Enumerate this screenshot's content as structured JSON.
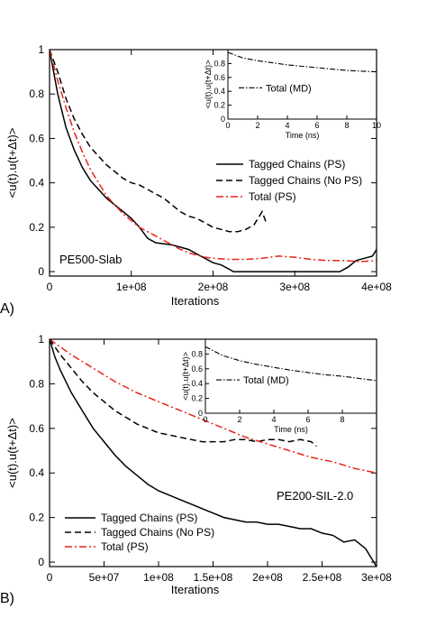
{
  "chart_data": [
    {
      "type": "line",
      "panel_label": "A)",
      "annotation": "PE500-Slab",
      "xlabel": "Iterations",
      "ylabel": "<u(t).u(t+Δt)>",
      "xlim": [
        0,
        400000000
      ],
      "ylim": [
        -0.02,
        1.0
      ],
      "x_ticks": [
        0,
        100000000,
        200000000,
        300000000,
        400000000
      ],
      "x_tick_labels": [
        "0",
        "1e+08",
        "2e+08",
        "3e+08",
        "4e+08"
      ],
      "y_ticks": [
        0,
        0.2,
        0.4,
        0.6,
        0.8,
        1
      ],
      "y_tick_labels": [
        "0",
        "0.2",
        "0.4",
        "0.6",
        "0.8",
        "1"
      ],
      "legend_position": "right",
      "series": [
        {
          "name": "Tagged Chains (PS)",
          "color": "#000000",
          "dash": "solid",
          "x": [
            0,
            5000000,
            10000000,
            20000000,
            30000000,
            40000000,
            50000000,
            60000000,
            70000000,
            80000000,
            90000000,
            100000000,
            110000000,
            120000000,
            130000000,
            140000000,
            150000000,
            160000000,
            170000000,
            180000000,
            190000000,
            200000000,
            210000000,
            220000000,
            225000000,
            355000000,
            365000000,
            375000000,
            385000000,
            395000000,
            400000000
          ],
          "y": [
            1.0,
            0.9,
            0.8,
            0.65,
            0.55,
            0.47,
            0.41,
            0.37,
            0.33,
            0.3,
            0.27,
            0.24,
            0.2,
            0.15,
            0.13,
            0.125,
            0.12,
            0.11,
            0.1,
            0.08,
            0.06,
            0.04,
            0.03,
            0.01,
            0.0,
            0.0,
            0.02,
            0.05,
            0.06,
            0.07,
            0.1
          ]
        },
        {
          "name": "Tagged Chains (No PS)",
          "color": "#000000",
          "dash": "dashed",
          "x": [
            0,
            10000000,
            20000000,
            30000000,
            40000000,
            50000000,
            60000000,
            70000000,
            80000000,
            90000000,
            100000000,
            110000000,
            120000000,
            130000000,
            140000000,
            150000000,
            160000000,
            170000000,
            180000000,
            190000000,
            200000000,
            210000000,
            220000000,
            230000000,
            240000000,
            250000000,
            255000000,
            260000000,
            265000000
          ],
          "y": [
            1.0,
            0.9,
            0.78,
            0.69,
            0.62,
            0.56,
            0.52,
            0.48,
            0.45,
            0.42,
            0.4,
            0.39,
            0.37,
            0.35,
            0.33,
            0.3,
            0.27,
            0.25,
            0.24,
            0.22,
            0.2,
            0.19,
            0.18,
            0.18,
            0.19,
            0.21,
            0.24,
            0.27,
            0.22
          ]
        },
        {
          "name": "Total (PS)",
          "color": "#e8241a",
          "dash": "dashdot",
          "x": [
            0,
            10000000,
            20000000,
            30000000,
            40000000,
            50000000,
            60000000,
            70000000,
            80000000,
            90000000,
            100000000,
            110000000,
            120000000,
            130000000,
            140000000,
            150000000,
            160000000,
            170000000,
            180000000,
            190000000,
            200000000,
            220000000,
            240000000,
            260000000,
            280000000,
            300000000,
            320000000,
            340000000,
            360000000,
            380000000,
            400000000
          ],
          "y": [
            1.0,
            0.86,
            0.74,
            0.63,
            0.54,
            0.46,
            0.4,
            0.34,
            0.3,
            0.26,
            0.23,
            0.2,
            0.18,
            0.16,
            0.14,
            0.12,
            0.1,
            0.085,
            0.075,
            0.065,
            0.06,
            0.055,
            0.055,
            0.06,
            0.07,
            0.065,
            0.055,
            0.05,
            0.05,
            0.045,
            0.05
          ]
        }
      ],
      "inset": {
        "type": "line",
        "xlabel": "Time (ns)",
        "ylabel": "<u(t).u(t+Δt)>",
        "xlim": [
          0,
          10
        ],
        "ylim": [
          0,
          1.0
        ],
        "x_ticks": [
          0,
          2,
          4,
          6,
          8,
          10
        ],
        "x_tick_labels": [
          "0",
          "2",
          "4",
          "6",
          "8",
          "10"
        ],
        "y_ticks": [
          0,
          0.2,
          0.4,
          0.6,
          0.8
        ],
        "y_tick_labels": [
          "0",
          "0.2",
          "0.4",
          "0.6",
          "0.8"
        ],
        "series": [
          {
            "name": "Total (MD)",
            "color": "#000000",
            "dash": "dashdot",
            "x": [
              0,
              1,
              2,
              3,
              4,
              5,
              6,
              7,
              8,
              9,
              10
            ],
            "y": [
              0.96,
              0.88,
              0.84,
              0.81,
              0.78,
              0.76,
              0.74,
              0.72,
              0.7,
              0.69,
              0.68
            ]
          }
        ]
      }
    },
    {
      "type": "line",
      "panel_label": "B)",
      "annotation": "PE200-SIL-2.0",
      "xlabel": "Iterations",
      "ylabel": "<u(t).u(t+Δt)>",
      "xlim": [
        0,
        300000000
      ],
      "ylim": [
        -0.02,
        1.0
      ],
      "x_ticks": [
        0,
        50000000,
        100000000,
        150000000,
        200000000,
        250000000,
        300000000
      ],
      "x_tick_labels": [
        "0",
        "5e+07",
        "1e+08",
        "1.5e+08",
        "2e+08",
        "2.5e+08",
        "3e+08"
      ],
      "y_ticks": [
        0,
        0.2,
        0.4,
        0.6,
        0.8,
        1
      ],
      "y_tick_labels": [
        "0",
        "0.2",
        "0.4",
        "0.6",
        "0.8",
        "1"
      ],
      "legend_position": "bottom-left",
      "series": [
        {
          "name": "Tagged Chains (PS)",
          "color": "#000000",
          "dash": "solid",
          "x": [
            0,
            5000000,
            10000000,
            20000000,
            30000000,
            40000000,
            50000000,
            60000000,
            70000000,
            80000000,
            90000000,
            100000000,
            110000000,
            120000000,
            130000000,
            140000000,
            150000000,
            160000000,
            170000000,
            180000000,
            190000000,
            200000000,
            210000000,
            220000000,
            230000000,
            240000000,
            250000000,
            260000000,
            270000000,
            280000000,
            290000000,
            295000000,
            300000000
          ],
          "y": [
            1.0,
            0.92,
            0.86,
            0.76,
            0.68,
            0.6,
            0.54,
            0.48,
            0.43,
            0.39,
            0.35,
            0.32,
            0.3,
            0.28,
            0.26,
            0.24,
            0.22,
            0.2,
            0.19,
            0.18,
            0.18,
            0.17,
            0.17,
            0.16,
            0.15,
            0.15,
            0.13,
            0.12,
            0.09,
            0.1,
            0.06,
            0.02,
            -0.02
          ]
        },
        {
          "name": "Tagged Chains (No PS)",
          "color": "#000000",
          "dash": "dashed",
          "x": [
            0,
            10000000,
            20000000,
            30000000,
            40000000,
            50000000,
            60000000,
            70000000,
            80000000,
            90000000,
            100000000,
            110000000,
            120000000,
            130000000,
            140000000,
            150000000,
            160000000,
            170000000,
            180000000,
            190000000,
            200000000,
            210000000,
            220000000,
            230000000,
            240000000,
            245000000
          ],
          "y": [
            1.0,
            0.93,
            0.87,
            0.81,
            0.76,
            0.72,
            0.68,
            0.65,
            0.62,
            0.6,
            0.58,
            0.57,
            0.56,
            0.55,
            0.54,
            0.54,
            0.54,
            0.55,
            0.55,
            0.54,
            0.55,
            0.55,
            0.54,
            0.55,
            0.54,
            0.52
          ]
        },
        {
          "name": "Total (PS)",
          "color": "#e8241a",
          "dash": "dashdot",
          "x": [
            0,
            20000000,
            40000000,
            60000000,
            80000000,
            100000000,
            120000000,
            140000000,
            160000000,
            180000000,
            200000000,
            220000000,
            240000000,
            260000000,
            280000000,
            300000000
          ],
          "y": [
            1.0,
            0.93,
            0.87,
            0.81,
            0.76,
            0.72,
            0.68,
            0.64,
            0.6,
            0.56,
            0.53,
            0.5,
            0.47,
            0.45,
            0.42,
            0.4
          ]
        }
      ],
      "inset": {
        "type": "line",
        "xlabel": "Time (ns)",
        "ylabel": "<u(t).u(t+Δt)>",
        "xlim": [
          0,
          10
        ],
        "ylim": [
          0,
          1.0
        ],
        "x_ticks": [
          0,
          2,
          4,
          6,
          8
        ],
        "x_tick_labels": [
          "0",
          "2",
          "4",
          "6",
          "8"
        ],
        "y_ticks": [
          0,
          0.2,
          0.4,
          0.6,
          0.8
        ],
        "y_tick_labels": [
          "0",
          "0.2",
          "0.4",
          "0.6",
          "0.8"
        ],
        "series": [
          {
            "name": "Total (MD)",
            "color": "#000000",
            "dash": "dashdot",
            "x": [
              0,
              1,
              2,
              3,
              4,
              5,
              6,
              7,
              8,
              9,
              10
            ],
            "y": [
              0.9,
              0.78,
              0.71,
              0.66,
              0.62,
              0.58,
              0.55,
              0.52,
              0.5,
              0.47,
              0.44
            ]
          }
        ]
      }
    }
  ]
}
